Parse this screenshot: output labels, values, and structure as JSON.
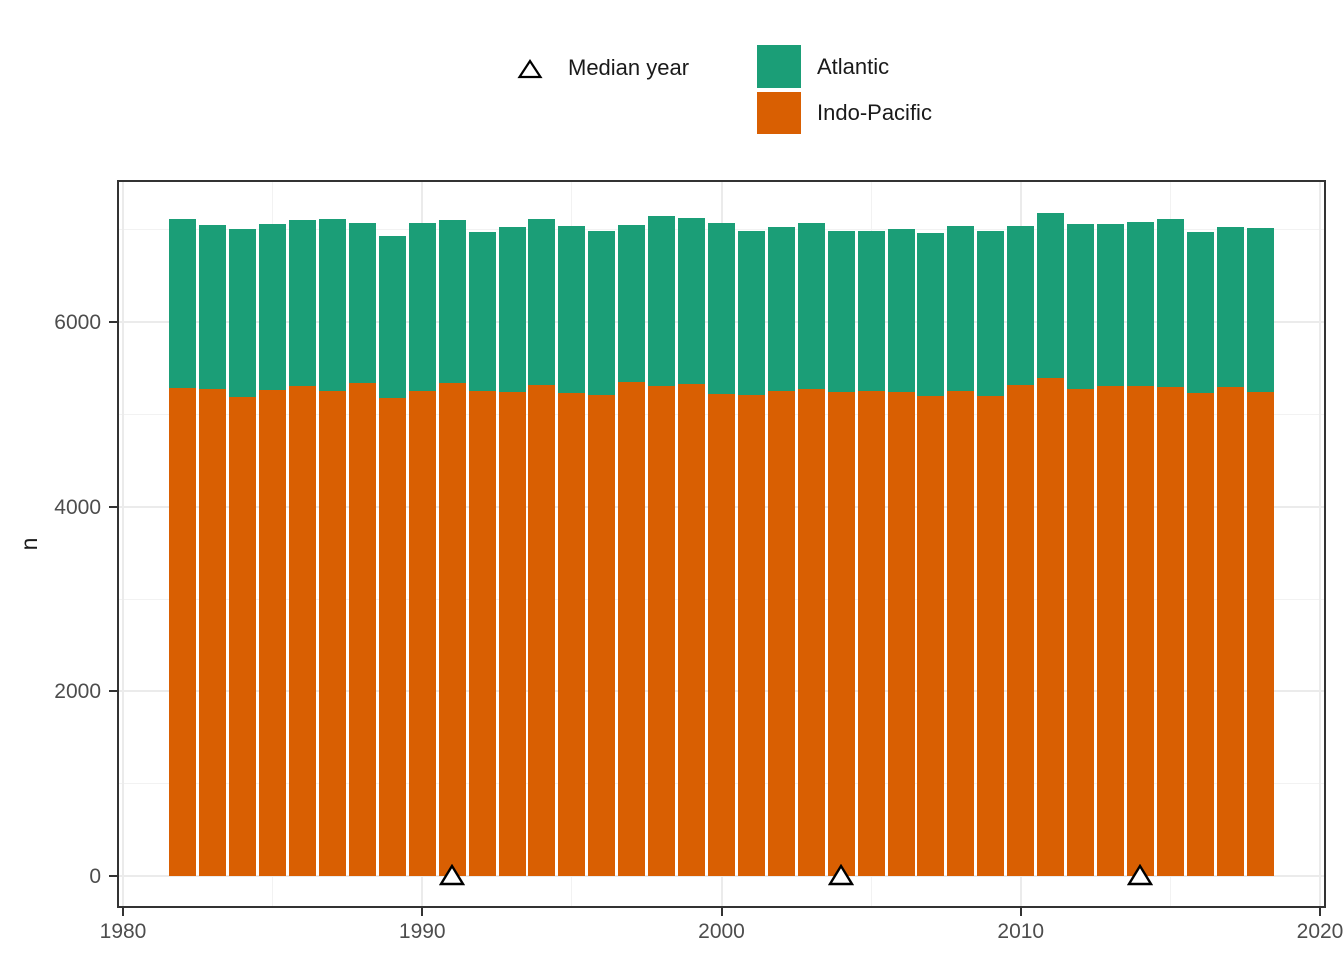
{
  "legend": {
    "median_year_label": "Median year",
    "atlantic_label": "Atlantic",
    "indo_pacific_label": "Indo-Pacific"
  },
  "colors": {
    "atlantic": "#1B9E77",
    "indo_pacific": "#D95F02",
    "panel_border": "#333333",
    "grid_major": "#EBEBEB",
    "grid_minor": "#F2F2F2",
    "axis_text": "#4D4D4D",
    "tick_mark": "#333333",
    "marker_fill": "#FFFFFF",
    "marker_stroke": "#000000"
  },
  "axes": {
    "y_title": "n",
    "y_ticks": [
      0,
      2000,
      4000,
      6000
    ],
    "y_minor_ticks": [
      1000,
      3000,
      5000,
      7000
    ],
    "x_ticks": [
      1980,
      1990,
      2000,
      2010,
      2020
    ],
    "x_minor_ticks": [
      1985,
      1995,
      2005,
      2015
    ]
  },
  "chart_data": {
    "type": "bar",
    "stacked": true,
    "title": "",
    "xlabel": "",
    "ylabel": "n",
    "legend_position": "top",
    "grid": true,
    "xlim": [
      1978.6,
      2020.3
    ],
    "ylim": [
      0,
      7540
    ],
    "x": [
      1982,
      1983,
      1984,
      1985,
      1986,
      1987,
      1988,
      1989,
      1990,
      1991,
      1992,
      1993,
      1994,
      1995,
      1996,
      1997,
      1998,
      1999,
      2000,
      2001,
      2002,
      2003,
      2004,
      2005,
      2006,
      2007,
      2008,
      2009,
      2010,
      2011,
      2012,
      2013,
      2014,
      2015,
      2016,
      2017,
      2018
    ],
    "series": [
      {
        "name": "Indo-Pacific",
        "color": "#D95F02",
        "values": [
          5290,
          5270,
          5190,
          5260,
          5310,
          5250,
          5335,
          5175,
          5250,
          5340,
          5250,
          5240,
          5315,
          5230,
          5210,
          5350,
          5305,
          5330,
          5215,
          5210,
          5250,
          5270,
          5240,
          5250,
          5240,
          5195,
          5250,
          5195,
          5315,
          5390,
          5270,
          5305,
          5305,
          5295,
          5230,
          5295,
          5240
        ]
      },
      {
        "name": "Atlantic",
        "color": "#1B9E77",
        "values": [
          1830,
          1780,
          1820,
          1800,
          1790,
          1870,
          1740,
          1760,
          1825,
          1760,
          1730,
          1790,
          1800,
          1810,
          1780,
          1700,
          1845,
          1800,
          1860,
          1780,
          1780,
          1805,
          1750,
          1740,
          1770,
          1770,
          1790,
          1795,
          1725,
          1795,
          1795,
          1760,
          1780,
          1820,
          1745,
          1735,
          1780
        ]
      }
    ],
    "median_year_markers": [
      1991,
      2004,
      2014
    ]
  }
}
